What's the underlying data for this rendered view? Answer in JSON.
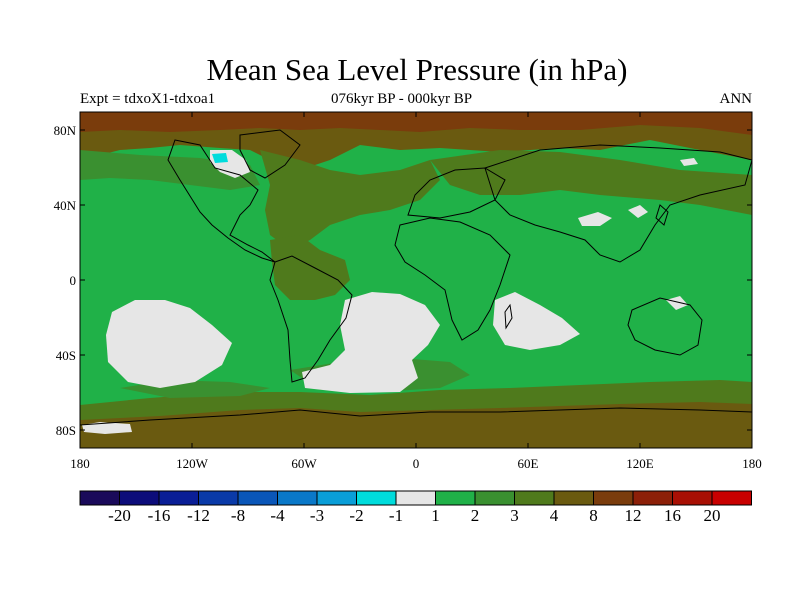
{
  "title": "Mean Sea Level Pressure (in hPa)",
  "subtitle_left": "Expt = tdxoX1-tdxoa1",
  "subtitle_center": "076kyr BP - 000kyr BP",
  "subtitle_right": "ANN",
  "lat_labels": [
    "80N",
    "40N",
    "0",
    "40S",
    "80S"
  ],
  "lon_labels": [
    "180",
    "120W",
    "60W",
    "0",
    "60E",
    "120E",
    "180"
  ],
  "colorbar": {
    "colors": [
      "#1a0a5a",
      "#0c0c7a",
      "#0a1e96",
      "#0a3aa8",
      "#0a56b8",
      "#0a78c8",
      "#0a9ed8",
      "#00dcdc",
      "#e6e6e6",
      "#20b148",
      "#3a9030",
      "#4f7a1c",
      "#6a5a10",
      "#7a3c0c",
      "#8c2008",
      "#a81004",
      "#c80000"
    ],
    "tick_labels": [
      "-20",
      "-16",
      "-12",
      "-8",
      "-4",
      "-3",
      "-2",
      "-1",
      "1",
      "2",
      "3",
      "4",
      "8",
      "12",
      "16",
      "20"
    ]
  },
  "map_colors": {
    "ocean_base": "#20b148",
    "band_3": "#3a9030",
    "band_4": "#4f7a1c",
    "band_8": "#6a5a10",
    "band_12": "#7a3c0c",
    "negative": "#e6e6e6",
    "cyan": "#00dcdc"
  }
}
